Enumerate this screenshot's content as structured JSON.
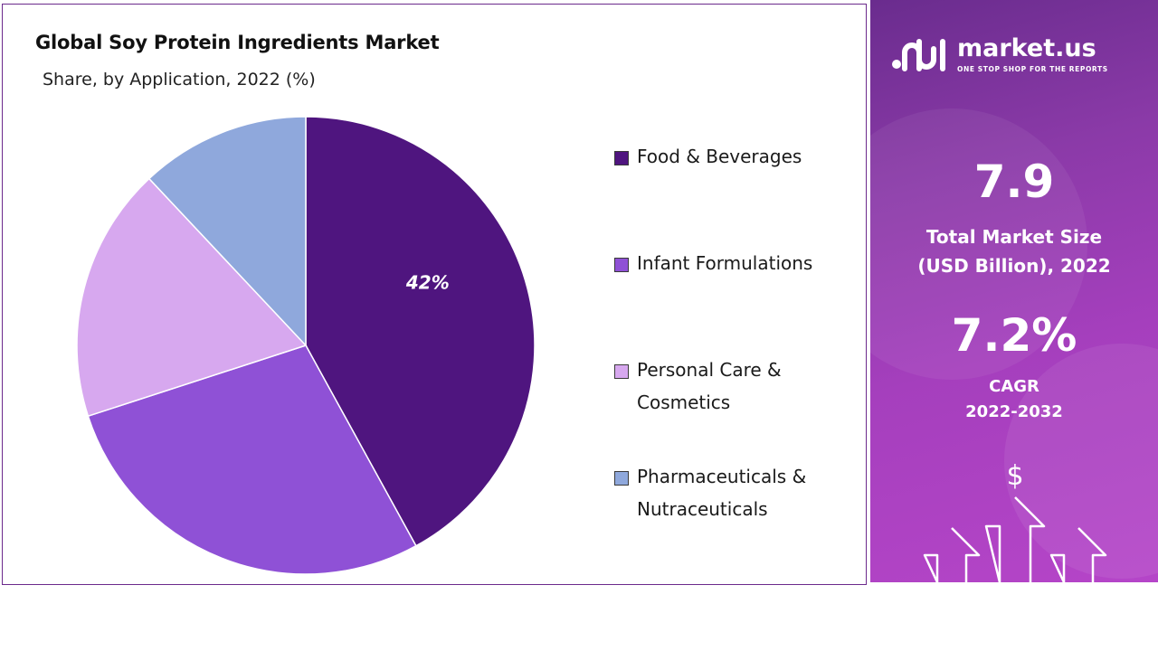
{
  "chart": {
    "title": "Global Soy Protein Ingredients Market",
    "subtitle": "Share, by Application, 2022 (%)"
  },
  "chart_data": {
    "type": "pie",
    "title": "Global Soy Protein Ingredients Market",
    "subtitle": "Share, by Application, 2022 (%)",
    "categories": [
      "Food & Beverages",
      "Infant Formulations",
      "Personal Care & Cosmetics",
      "Pharmaceuticals & Nutraceuticals"
    ],
    "values": [
      42,
      28,
      18,
      12
    ],
    "unit": "%",
    "data_labels": [
      "42%",
      "",
      "",
      ""
    ],
    "colors": [
      "#4f157f",
      "#8f51d6",
      "#d7a8ef",
      "#8fa8dc"
    ],
    "start_angle_deg": 0,
    "direction": "clockwise",
    "legend": {
      "position": "right",
      "entries": [
        {
          "label_lines": [
            "Food & Beverages"
          ],
          "color": "#4f157f"
        },
        {
          "label_lines": [
            "Infant Formulations"
          ],
          "color": "#8f51d6"
        },
        {
          "label_lines": [
            "Personal Care &",
            "Cosmetics"
          ],
          "color": "#d7a8ef"
        },
        {
          "label_lines": [
            "Pharmaceuticals &",
            "Nutraceuticals"
          ],
          "color": "#8fa8dc"
        }
      ]
    }
  },
  "brand": {
    "name": "market.us",
    "tagline": "ONE STOP SHOP FOR THE REPORTS"
  },
  "stats": {
    "market_size_value": "7.9",
    "market_size_caption_line1": "Total Market Size",
    "market_size_caption_line2": "(USD Billion), 2022",
    "cagr_value": "7.2%",
    "cagr_caption_line1": "CAGR",
    "cagr_caption_line2": "2022-2032"
  },
  "decor": {
    "dollar_symbol": "$",
    "arrow_icon": "up-arrow-outline-icon",
    "panel_gradient": [
      "#6a2c8e",
      "#b545c8"
    ],
    "accent_color": "#6b2a8c"
  }
}
